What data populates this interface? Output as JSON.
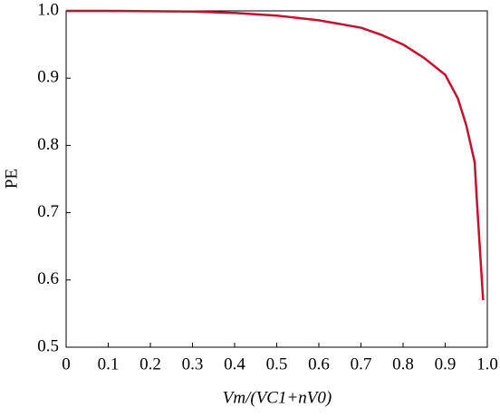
{
  "chart_data": {
    "type": "line",
    "xlabel": "Vm/(VC1+nV0)",
    "ylabel": "PE",
    "x": [
      0,
      0.1,
      0.2,
      0.3,
      0.4,
      0.5,
      0.6,
      0.7,
      0.75,
      0.8,
      0.85,
      0.9,
      0.93,
      0.95,
      0.97,
      0.975,
      0.98,
      0.99
    ],
    "series": [
      {
        "color": "#c8102e",
        "values": [
          1.0,
          1.0,
          0.9995,
          0.999,
          0.997,
          0.993,
          0.986,
          0.975,
          0.964,
          0.95,
          0.93,
          0.905,
          0.87,
          0.83,
          0.775,
          0.72,
          0.67,
          0.57
        ]
      }
    ],
    "xlim": [
      0,
      1.0
    ],
    "ylim": [
      0.5,
      1.0
    ],
    "xticks": [
      0,
      0.1,
      0.2,
      0.3,
      0.4,
      0.5,
      0.6,
      0.7,
      0.8,
      0.9,
      {
        "value": 1,
        "label": "1.0"
      }
    ],
    "yticks": [
      0.5,
      0.6,
      0.7,
      0.8,
      0.9,
      {
        "value": 1,
        "label": "1.0"
      }
    ],
    "grid": false
  }
}
